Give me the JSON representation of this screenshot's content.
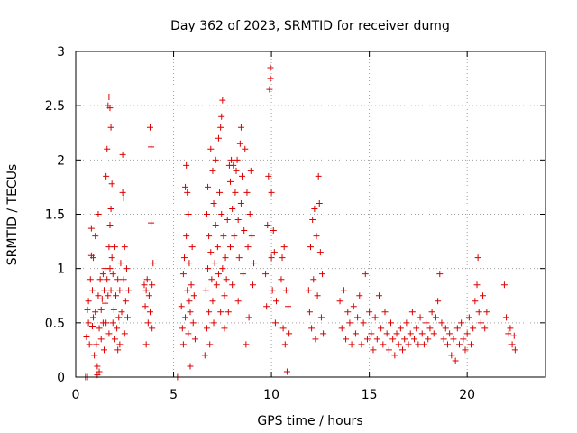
{
  "chart_data": {
    "type": "scatter",
    "title": "Day 362 of 2023, SRMTID for receiver dumg",
    "xlabel": "GPS time / hours",
    "ylabel": "SRMTID / TECUs",
    "xlim": [
      0,
      24
    ],
    "ylim": [
      0,
      3
    ],
    "x_ticks": [
      0,
      5,
      10,
      15,
      20
    ],
    "x_tick_labels": [
      "0",
      "5",
      "10",
      "15",
      "20"
    ],
    "y_ticks": [
      0,
      0.5,
      1,
      1.5,
      2,
      2.5,
      3
    ],
    "y_tick_labels": [
      "0",
      "0.5",
      "1",
      "1.5",
      "2",
      "2.5",
      "3"
    ],
    "grid": true,
    "marker": "+",
    "color": "#dd0000",
    "series": [
      {
        "name": "SRMTID",
        "points": [
          [
            0.5,
            0.0
          ],
          [
            0.6,
            0.0
          ],
          [
            0.55,
            0.37
          ],
          [
            0.6,
            0.62
          ],
          [
            0.65,
            0.7
          ],
          [
            0.65,
            0.5
          ],
          [
            0.7,
            0.3
          ],
          [
            0.75,
            0.9
          ],
          [
            0.8,
            1.12
          ],
          [
            0.8,
            1.37
          ],
          [
            0.85,
            0.8
          ],
          [
            0.85,
            0.47
          ],
          [
            0.9,
            1.1
          ],
          [
            0.9,
            0.55
          ],
          [
            0.95,
            0.2
          ],
          [
            1.0,
            1.3
          ],
          [
            1.0,
            0.6
          ],
          [
            1.05,
            0.3
          ],
          [
            1.1,
            0.1
          ],
          [
            1.1,
            0.02
          ],
          [
            1.15,
            1.5
          ],
          [
            1.15,
            0.75
          ],
          [
            1.2,
            0.45
          ],
          [
            1.2,
            0.05
          ],
          [
            1.25,
            0.9
          ],
          [
            1.3,
            0.62
          ],
          [
            1.3,
            0.35
          ],
          [
            1.35,
            0.72
          ],
          [
            1.4,
            0.95
          ],
          [
            1.4,
            0.5
          ],
          [
            1.45,
            0.8
          ],
          [
            1.45,
            0.25
          ],
          [
            1.5,
            1.0
          ],
          [
            1.5,
            0.68
          ],
          [
            1.55,
            1.85
          ],
          [
            1.55,
            0.5
          ],
          [
            1.6,
            2.1
          ],
          [
            1.6,
            0.9
          ],
          [
            1.65,
            2.5
          ],
          [
            1.65,
            0.75
          ],
          [
            1.7,
            2.58
          ],
          [
            1.7,
            1.2
          ],
          [
            1.7,
            0.4
          ],
          [
            1.75,
            2.48
          ],
          [
            1.75,
            1.4
          ],
          [
            1.75,
            1.0
          ],
          [
            1.8,
            2.3
          ],
          [
            1.8,
            1.55
          ],
          [
            1.8,
            0.8
          ],
          [
            1.85,
            1.78
          ],
          [
            1.85,
            1.1
          ],
          [
            1.9,
            0.95
          ],
          [
            1.9,
            0.5
          ],
          [
            1.95,
            0.62
          ],
          [
            2.0,
            1.2
          ],
          [
            2.0,
            0.35
          ],
          [
            2.05,
            0.75
          ],
          [
            2.1,
            0.45
          ],
          [
            2.15,
            0.9
          ],
          [
            2.15,
            0.25
          ],
          [
            2.2,
            0.55
          ],
          [
            2.25,
            0.8
          ],
          [
            2.25,
            0.3
          ],
          [
            2.3,
            1.05
          ],
          [
            2.35,
            0.6
          ],
          [
            2.4,
            2.05
          ],
          [
            2.4,
            1.7
          ],
          [
            2.45,
            1.65
          ],
          [
            2.45,
            0.9
          ],
          [
            2.5,
            1.2
          ],
          [
            2.5,
            0.4
          ],
          [
            2.55,
            0.7
          ],
          [
            2.6,
            1.0
          ],
          [
            2.65,
            0.55
          ],
          [
            2.7,
            0.8
          ],
          [
            3.5,
            0.85
          ],
          [
            3.55,
            0.65
          ],
          [
            3.6,
            0.8
          ],
          [
            3.6,
            0.3
          ],
          [
            3.65,
            0.9
          ],
          [
            3.7,
            0.5
          ],
          [
            3.75,
            0.75
          ],
          [
            3.8,
            2.3
          ],
          [
            3.8,
            0.6
          ],
          [
            3.85,
            2.12
          ],
          [
            3.85,
            1.42
          ],
          [
            3.9,
            0.85
          ],
          [
            3.9,
            0.45
          ],
          [
            3.95,
            1.05
          ],
          [
            5.2,
            0.0
          ],
          [
            5.4,
            0.65
          ],
          [
            5.45,
            0.45
          ],
          [
            5.5,
            0.95
          ],
          [
            5.5,
            0.3
          ],
          [
            5.55,
            1.1
          ],
          [
            5.6,
            1.75
          ],
          [
            5.6,
            0.55
          ],
          [
            5.65,
            1.95
          ],
          [
            5.65,
            1.3
          ],
          [
            5.7,
            1.7
          ],
          [
            5.7,
            0.8
          ],
          [
            5.75,
            1.5
          ],
          [
            5.75,
            0.4
          ],
          [
            5.8,
            1.05
          ],
          [
            5.8,
            0.7
          ],
          [
            5.85,
            0.1
          ],
          [
            5.85,
            0.6
          ],
          [
            5.9,
            0.85
          ],
          [
            5.95,
            1.2
          ],
          [
            6.0,
            0.5
          ],
          [
            6.05,
            0.75
          ],
          [
            6.1,
            0.35
          ],
          [
            6.6,
            0.2
          ],
          [
            6.65,
            0.8
          ],
          [
            6.7,
            1.5
          ],
          [
            6.7,
            0.45
          ],
          [
            6.75,
            1.75
          ],
          [
            6.75,
            1.0
          ],
          [
            6.8,
            1.3
          ],
          [
            6.8,
            0.6
          ],
          [
            6.85,
            0.3
          ],
          [
            6.9,
            2.1
          ],
          [
            6.9,
            1.15
          ],
          [
            6.95,
            0.9
          ],
          [
            7.0,
            1.9
          ],
          [
            7.0,
            0.7
          ],
          [
            7.05,
            1.6
          ],
          [
            7.05,
            0.5
          ],
          [
            7.1,
            1.05
          ],
          [
            7.15,
            2.0
          ],
          [
            7.15,
            1.4
          ],
          [
            7.2,
            0.85
          ],
          [
            7.25,
            1.2
          ],
          [
            7.3,
            2.2
          ],
          [
            7.3,
            0.95
          ],
          [
            7.35,
            1.7
          ],
          [
            7.4,
            2.3
          ],
          [
            7.4,
            0.6
          ],
          [
            7.45,
            2.4
          ],
          [
            7.45,
            1.5
          ],
          [
            7.5,
            2.55
          ],
          [
            7.5,
            1.0
          ],
          [
            7.55,
            1.3
          ],
          [
            7.6,
            0.75
          ],
          [
            7.6,
            0.45
          ],
          [
            7.65,
            1.1
          ],
          [
            7.7,
            0.9
          ],
          [
            7.75,
            1.45
          ],
          [
            7.8,
            0.6
          ],
          [
            7.85,
            1.95
          ],
          [
            7.9,
            1.8
          ],
          [
            7.9,
            1.2
          ],
          [
            7.95,
            2.0
          ],
          [
            8.0,
            1.55
          ],
          [
            8.0,
            0.85
          ],
          [
            8.05,
            1.95
          ],
          [
            8.1,
            1.3
          ],
          [
            8.15,
            1.7
          ],
          [
            8.2,
            1.9
          ],
          [
            8.25,
            2.0
          ],
          [
            8.3,
            1.45
          ],
          [
            8.3,
            0.7
          ],
          [
            8.35,
            1.1
          ],
          [
            8.4,
            2.15
          ],
          [
            8.45,
            2.3
          ],
          [
            8.45,
            1.6
          ],
          [
            8.5,
            1.85
          ],
          [
            8.55,
            0.95
          ],
          [
            8.6,
            1.35
          ],
          [
            8.65,
            2.1
          ],
          [
            8.7,
            0.3
          ],
          [
            8.75,
            1.7
          ],
          [
            8.8,
            1.2
          ],
          [
            8.85,
            0.55
          ],
          [
            8.9,
            1.5
          ],
          [
            8.95,
            1.9
          ],
          [
            9.0,
            1.3
          ],
          [
            9.05,
            0.85
          ],
          [
            9.1,
            1.05
          ],
          [
            9.7,
            0.95
          ],
          [
            9.75,
            0.65
          ],
          [
            9.8,
            1.4
          ],
          [
            9.85,
            1.85
          ],
          [
            9.9,
            2.65
          ],
          [
            9.95,
            2.85
          ],
          [
            9.95,
            2.75
          ],
          [
            10.0,
            1.7
          ],
          [
            10.0,
            1.1
          ],
          [
            10.05,
            0.8
          ],
          [
            10.1,
            1.35
          ],
          [
            10.15,
            1.15
          ],
          [
            10.2,
            0.5
          ],
          [
            10.25,
            0.7
          ],
          [
            10.5,
            0.9
          ],
          [
            10.55,
            1.1
          ],
          [
            10.6,
            0.45
          ],
          [
            10.65,
            1.2
          ],
          [
            10.7,
            0.3
          ],
          [
            10.75,
            0.8
          ],
          [
            10.8,
            0.05
          ],
          [
            10.85,
            0.65
          ],
          [
            10.9,
            0.4
          ],
          [
            11.9,
            0.8
          ],
          [
            11.95,
            0.6
          ],
          [
            12.0,
            1.2
          ],
          [
            12.05,
            0.45
          ],
          [
            12.1,
            1.45
          ],
          [
            12.15,
            0.9
          ],
          [
            12.2,
            1.55
          ],
          [
            12.25,
            0.35
          ],
          [
            12.3,
            1.3
          ],
          [
            12.35,
            0.75
          ],
          [
            12.4,
            1.85
          ],
          [
            12.45,
            1.6
          ],
          [
            12.5,
            1.15
          ],
          [
            12.55,
            0.55
          ],
          [
            12.6,
            0.95
          ],
          [
            12.65,
            0.4
          ],
          [
            13.5,
            0.7
          ],
          [
            13.6,
            0.45
          ],
          [
            13.7,
            0.8
          ],
          [
            13.8,
            0.35
          ],
          [
            13.9,
            0.6
          ],
          [
            14.0,
            0.5
          ],
          [
            14.1,
            0.3
          ],
          [
            14.2,
            0.65
          ],
          [
            14.3,
            0.4
          ],
          [
            14.4,
            0.55
          ],
          [
            14.5,
            0.75
          ],
          [
            14.6,
            0.3
          ],
          [
            14.7,
            0.5
          ],
          [
            14.8,
            0.95
          ],
          [
            14.9,
            0.35
          ],
          [
            15.0,
            0.6
          ],
          [
            15.1,
            0.4
          ],
          [
            15.2,
            0.25
          ],
          [
            15.3,
            0.55
          ],
          [
            15.4,
            0.35
          ],
          [
            15.5,
            0.75
          ],
          [
            15.6,
            0.45
          ],
          [
            15.7,
            0.3
          ],
          [
            15.8,
            0.6
          ],
          [
            15.9,
            0.4
          ],
          [
            16.0,
            0.25
          ],
          [
            16.1,
            0.5
          ],
          [
            16.2,
            0.35
          ],
          [
            16.3,
            0.2
          ],
          [
            16.4,
            0.4
          ],
          [
            16.5,
            0.3
          ],
          [
            16.6,
            0.45
          ],
          [
            16.7,
            0.25
          ],
          [
            16.8,
            0.35
          ],
          [
            16.9,
            0.5
          ],
          [
            17.0,
            0.3
          ],
          [
            17.1,
            0.4
          ],
          [
            17.2,
            0.6
          ],
          [
            17.3,
            0.35
          ],
          [
            17.4,
            0.45
          ],
          [
            17.5,
            0.3
          ],
          [
            17.6,
            0.55
          ],
          [
            17.7,
            0.4
          ],
          [
            17.8,
            0.3
          ],
          [
            17.9,
            0.5
          ],
          [
            18.0,
            0.35
          ],
          [
            18.1,
            0.45
          ],
          [
            18.2,
            0.6
          ],
          [
            18.3,
            0.4
          ],
          [
            18.4,
            0.55
          ],
          [
            18.5,
            0.7
          ],
          [
            18.6,
            0.95
          ],
          [
            18.7,
            0.5
          ],
          [
            18.8,
            0.35
          ],
          [
            18.9,
            0.45
          ],
          [
            19.0,
            0.3
          ],
          [
            19.1,
            0.4
          ],
          [
            19.2,
            0.2
          ],
          [
            19.3,
            0.35
          ],
          [
            19.4,
            0.15
          ],
          [
            19.5,
            0.45
          ],
          [
            19.6,
            0.3
          ],
          [
            19.7,
            0.5
          ],
          [
            19.8,
            0.35
          ],
          [
            19.9,
            0.25
          ],
          [
            20.0,
            0.4
          ],
          [
            20.1,
            0.55
          ],
          [
            20.2,
            0.3
          ],
          [
            20.3,
            0.45
          ],
          [
            20.4,
            0.7
          ],
          [
            20.5,
            0.85
          ],
          [
            20.55,
            1.1
          ],
          [
            20.6,
            0.6
          ],
          [
            20.7,
            0.5
          ],
          [
            20.8,
            0.75
          ],
          [
            20.9,
            0.45
          ],
          [
            21.0,
            0.6
          ],
          [
            21.9,
            0.85
          ],
          [
            22.0,
            0.55
          ],
          [
            22.1,
            0.4
          ],
          [
            22.2,
            0.45
          ],
          [
            22.3,
            0.3
          ],
          [
            22.4,
            0.38
          ],
          [
            22.45,
            0.25
          ]
        ]
      }
    ]
  }
}
